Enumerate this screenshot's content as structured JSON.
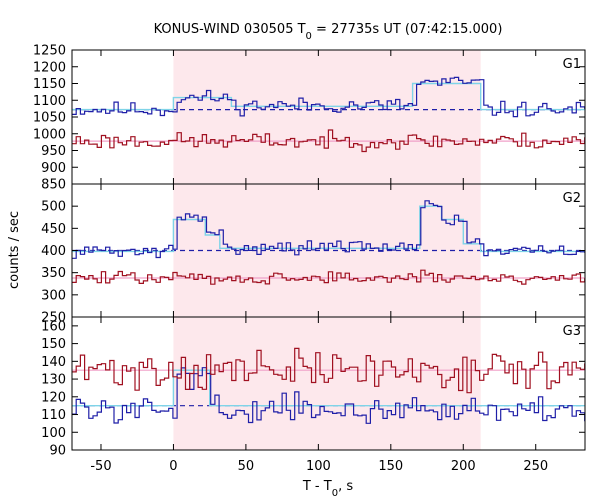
{
  "chart_data": {
    "type": "line",
    "title": {
      "prefix": "KONUS-WIND 030505 T",
      "sub": "0",
      "suffix": " = 27735s UT (07:42:15.000)"
    },
    "xlabel": {
      "prefix": "T - T",
      "sub": "0",
      "suffix": ", s"
    },
    "ylabel": "counts / sec",
    "xlim": [
      -70,
      284
    ],
    "xticks": [
      -50,
      0,
      50,
      100,
      150,
      200,
      250
    ],
    "shaded_interval": [
      0,
      212
    ],
    "colors": {
      "shade": "#fde8ec",
      "high_energy_series": "#1f1fa8",
      "low_energy_series": "#a01020",
      "step_fit": "#7fd4e8",
      "background_level": "#1f1fa8",
      "low_level": "#f0a0c8"
    },
    "panels": [
      {
        "label": "G1",
        "ylim": [
          850,
          1250
        ],
        "yticks": [
          850,
          900,
          950,
          1000,
          1050,
          1100,
          1150,
          1200,
          1250
        ],
        "series": [
          {
            "role": "upper",
            "baseline": 1072,
            "noise": 16,
            "seed": 11,
            "bumps": [
              {
                "from": 0,
                "to": 40,
                "add": 35
              },
              {
                "from": 40,
                "to": 165,
                "add": 12
              },
              {
                "from": 165,
                "to": 212,
                "add": 80
              }
            ]
          },
          {
            "role": "lower",
            "baseline": 978,
            "noise": 17,
            "seed": 23,
            "bumps": []
          }
        ],
        "step_fit": [
          [
            -70,
            1072
          ],
          [
            0,
            1072
          ],
          [
            0,
            1108
          ],
          [
            40,
            1108
          ],
          [
            40,
            1082
          ],
          [
            165,
            1082
          ],
          [
            165,
            1150
          ],
          [
            212,
            1150
          ],
          [
            212,
            1072
          ],
          [
            284,
            1072
          ]
        ],
        "dashed_level": 1072,
        "low_level": 978
      },
      {
        "label": "G2",
        "ylim": [
          250,
          550
        ],
        "yticks": [
          250,
          300,
          350,
          400,
          450,
          500
        ],
        "series": [
          {
            "role": "upper",
            "baseline": 398,
            "noise": 10,
            "seed": 31,
            "bumps": [
              {
                "from": 0,
                "to": 22,
                "add": 75
              },
              {
                "from": 22,
                "to": 32,
                "add": 40
              },
              {
                "from": 32,
                "to": 170,
                "add": 10
              },
              {
                "from": 170,
                "to": 185,
                "add": 110
              },
              {
                "from": 185,
                "to": 200,
                "add": 70
              },
              {
                "from": 200,
                "to": 212,
                "add": 20
              }
            ]
          },
          {
            "role": "lower",
            "baseline": 338,
            "noise": 10,
            "seed": 47,
            "bumps": []
          }
        ],
        "step_fit": [
          [
            -70,
            398
          ],
          [
            0,
            398
          ],
          [
            0,
            470
          ],
          [
            22,
            470
          ],
          [
            22,
            435
          ],
          [
            32,
            435
          ],
          [
            32,
            405
          ],
          [
            170,
            405
          ],
          [
            170,
            500
          ],
          [
            185,
            500
          ],
          [
            185,
            470
          ],
          [
            200,
            470
          ],
          [
            200,
            415
          ],
          [
            212,
            415
          ],
          [
            212,
            398
          ],
          [
            284,
            398
          ]
        ],
        "dashed_level": 400,
        "low_level": 338
      },
      {
        "label": "G3",
        "ylim": [
          90,
          165
        ],
        "yticks": [
          90,
          100,
          110,
          120,
          130,
          140,
          150,
          160
        ],
        "series": [
          {
            "role": "upper",
            "baseline": 113,
            "noise": 5,
            "seed": 59,
            "bumps": [
              {
                "from": 0,
                "to": 25,
                "add": 20
              }
            ]
          },
          {
            "role": "lower",
            "baseline": 135,
            "noise": 8,
            "seed": 71,
            "bumps": []
          }
        ],
        "step_fit": [
          [
            -70,
            115
          ],
          [
            0,
            115
          ],
          [
            0,
            135
          ],
          [
            25,
            135
          ],
          [
            25,
            115
          ],
          [
            284,
            115
          ]
        ],
        "dashed_level": 115,
        "low_level": 135
      }
    ]
  }
}
